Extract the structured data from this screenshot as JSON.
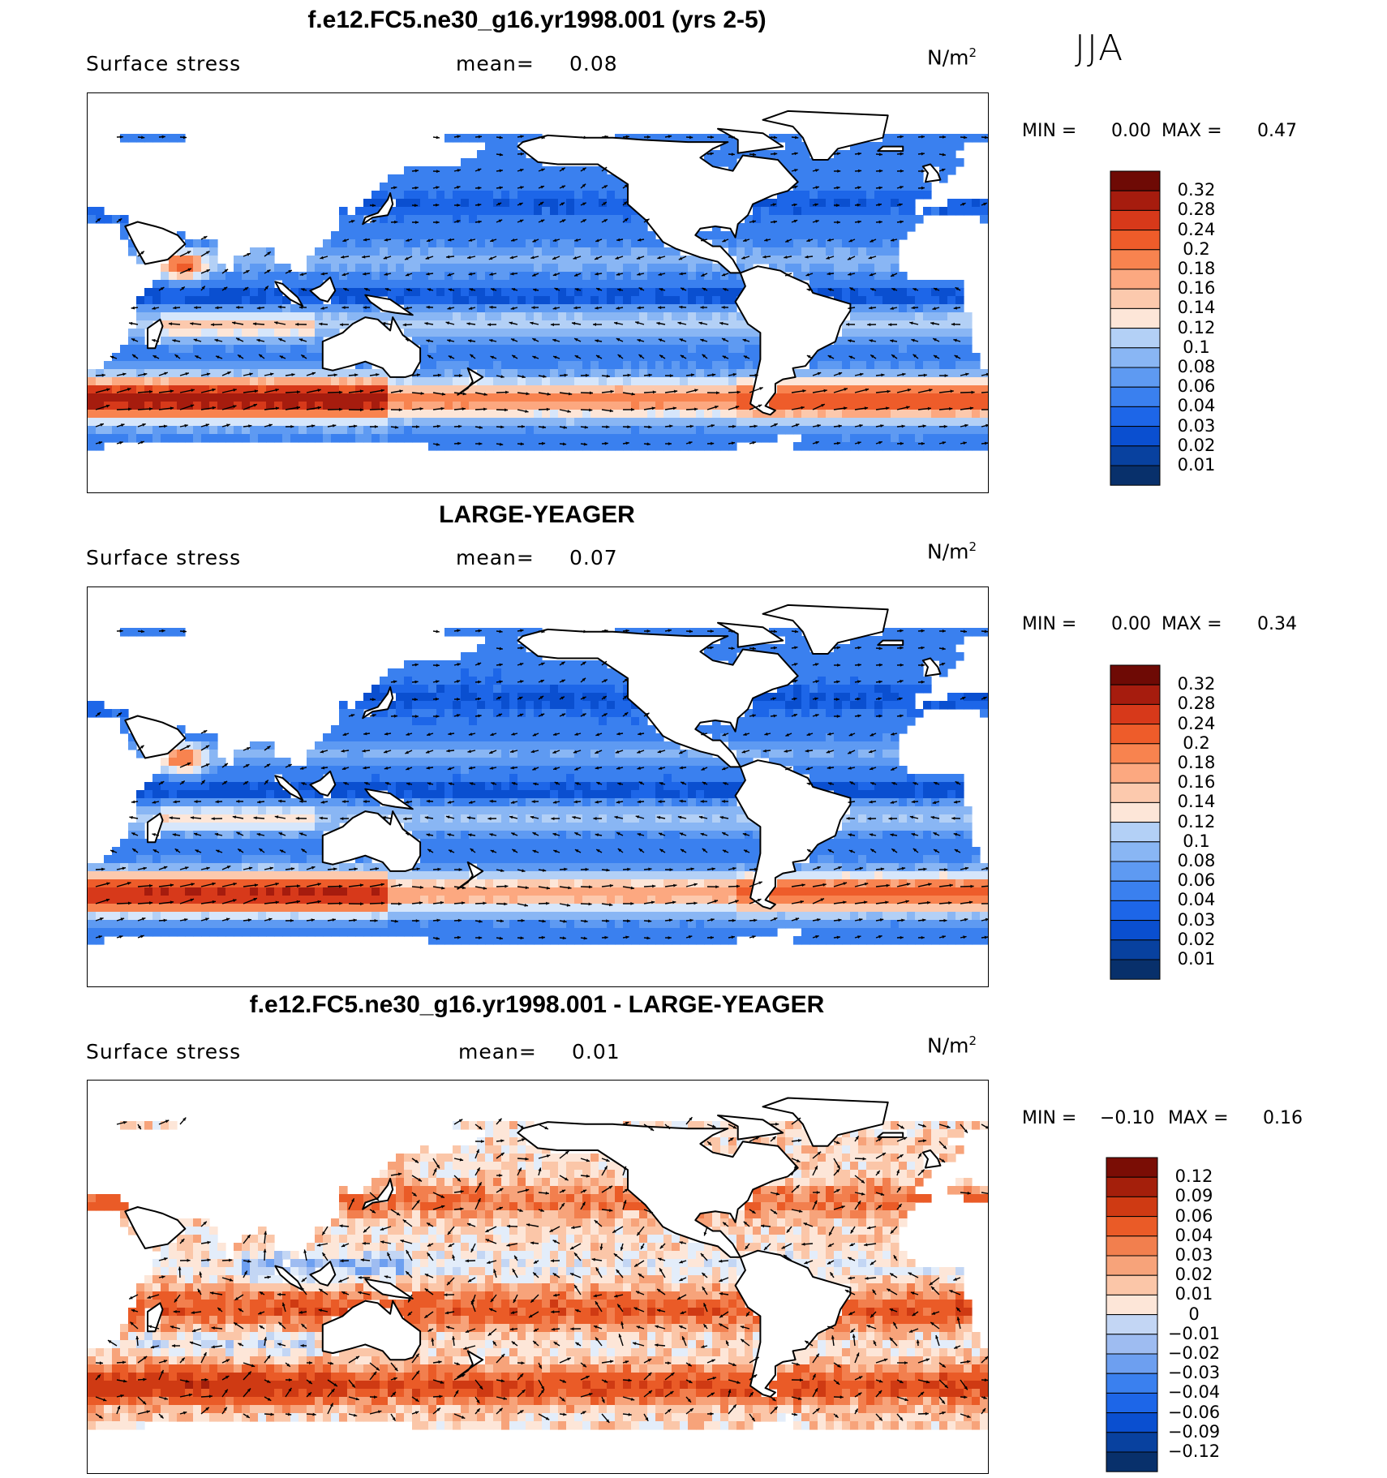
{
  "season": "JJA",
  "palette_seq": [
    "#08306b",
    "#08419f",
    "#0a4fd0",
    "#1d66e8",
    "#3a80ef",
    "#5e9af2",
    "#89b6f4",
    "#b3d0f6",
    "#d6e6fb",
    "#fde6d8",
    "#fcc9ad",
    "#fca880",
    "#f8834f",
    "#ee5c2a",
    "#d7391a",
    "#a61c0e",
    "#6e0a05"
  ],
  "palette_div": [
    "#08306b",
    "#08419f",
    "#0a4fd0",
    "#1d66e8",
    "#3a80ef",
    "#6d9ff0",
    "#9ebcf1",
    "#c3d6f4",
    "#e3edfa",
    "#fde6d8",
    "#fbc6a8",
    "#f7a37a",
    "#f27f4e",
    "#ea5b27",
    "#cf3a13",
    "#a41f0b",
    "#7a0d05"
  ],
  "panels": [
    {
      "title": "f.e12.FC5.ne30_g16.yr1998.001 (yrs 2-5)",
      "variable": "Surface stress",
      "mean_label": "mean=",
      "mean_value": "0.08",
      "units": "N/m",
      "units_exp": "2",
      "min_label": "MIN =",
      "min_value": "0.00",
      "max_label": "MAX =",
      "max_value": "0.47",
      "chart_data": {
        "type": "heatmap",
        "field": "surface stress magnitude with vectors",
        "units": "N/m2",
        "mean": 0.08,
        "min": 0.0,
        "max": 0.47,
        "levels": [
          "0.32",
          "0.28",
          "0.24",
          "0.2",
          "0.18",
          "0.16",
          "0.14",
          "0.12",
          "0.1",
          "0.08",
          "0.06",
          "0.04",
          "0.03",
          "0.02",
          "0.01"
        ]
      }
    },
    {
      "title": "LARGE-YEAGER",
      "variable": "Surface stress",
      "mean_label": "mean=",
      "mean_value": "0.07",
      "units": "N/m",
      "units_exp": "2",
      "min_label": "MIN =",
      "min_value": "0.00",
      "max_label": "MAX =",
      "max_value": "0.34",
      "chart_data": {
        "type": "heatmap",
        "field": "surface stress magnitude with vectors",
        "units": "N/m2",
        "mean": 0.07,
        "min": 0.0,
        "max": 0.34,
        "levels": [
          "0.32",
          "0.28",
          "0.24",
          "0.2",
          "0.18",
          "0.16",
          "0.14",
          "0.12",
          "0.1",
          "0.08",
          "0.06",
          "0.04",
          "0.03",
          "0.02",
          "0.01"
        ]
      }
    },
    {
      "title": "f.e12.FC5.ne30_g16.yr1998.001 - LARGE-YEAGER",
      "variable": "Surface stress",
      "mean_label": "mean=",
      "mean_value": "0.01",
      "units": "N/m",
      "units_exp": "2",
      "min_label": "MIN =",
      "min_value": "−0.10",
      "max_label": "MAX =",
      "max_value": "0.16",
      "chart_data": {
        "type": "heatmap",
        "field": "surface stress difference with vectors",
        "units": "N/m2",
        "mean": 0.01,
        "min": -0.1,
        "max": 0.16,
        "levels": [
          "0.12",
          "0.09",
          "0.06",
          "0.04",
          "0.03",
          "0.02",
          "0.01",
          "0",
          "−0.01",
          "−0.02",
          "−0.03",
          "−0.04",
          "−0.06",
          "−0.09",
          "−0.12"
        ]
      }
    }
  ]
}
